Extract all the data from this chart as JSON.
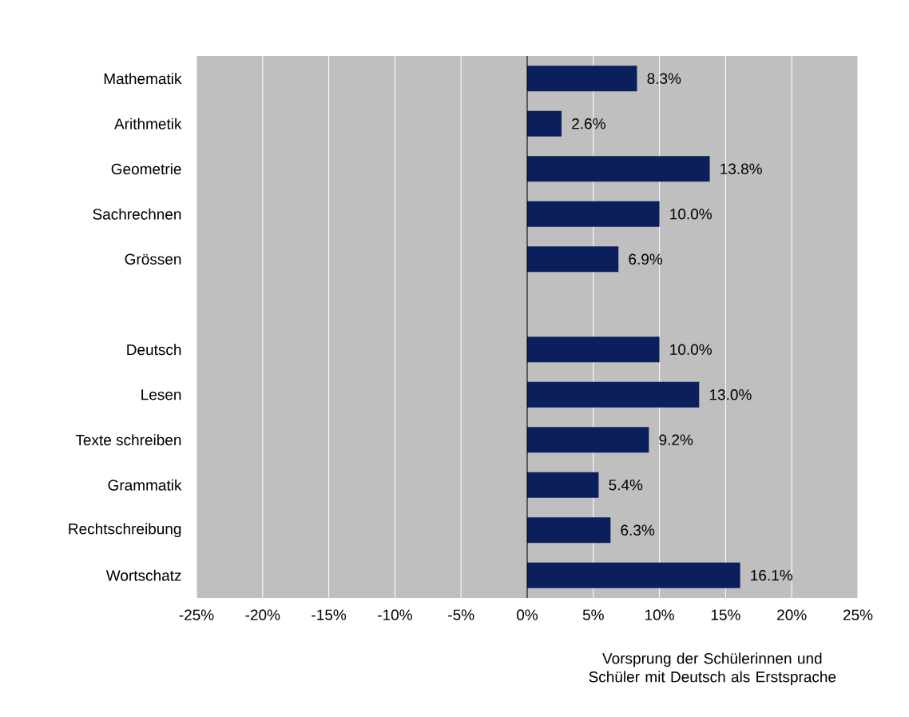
{
  "chart_data": {
    "type": "bar",
    "orientation": "horizontal",
    "categories": [
      "Mathematik",
      "Arithmetik",
      "Geometrie",
      "Sachrechnen",
      "Grössen",
      null,
      "Deutsch",
      "Lesen",
      "Texte schreiben",
      "Grammatik",
      "Rechtschreibung",
      "Wortschatz"
    ],
    "values": [
      8.3,
      2.6,
      13.8,
      10.0,
      6.9,
      null,
      10.0,
      13.0,
      9.2,
      5.4,
      6.3,
      16.1
    ],
    "value_labels": [
      "8.3%",
      "2.6%",
      "13.8%",
      "10.0%",
      "6.9%",
      null,
      "10.0%",
      "13.0%",
      "9.2%",
      "5.4%",
      "6.3%",
      "16.1%"
    ],
    "color": "#0b1f5c",
    "xlabel": "Vorsprung der Schülerinnen und Schüler mit Deutsch als Erstsprache",
    "xlim": [
      -25,
      25
    ],
    "xticks": [
      {
        "value": -25,
        "label": "-25%"
      },
      {
        "value": -20,
        "label": "-20%"
      },
      {
        "value": -15,
        "label": "-15%"
      },
      {
        "value": -10,
        "label": "-10%"
      },
      {
        "value": -5,
        "label": "-5%"
      },
      {
        "value": 0,
        "label": "0%"
      },
      {
        "value": 5,
        "label": "5%"
      },
      {
        "value": 10,
        "label": "10%"
      },
      {
        "value": 15,
        "label": "15%"
      },
      {
        "value": 20,
        "label": "20%"
      },
      {
        "value": 25,
        "label": "25%"
      }
    ],
    "ref_lines": [
      {
        "axis": "x",
        "value": 0,
        "color": "#000000"
      }
    ],
    "grid": "x"
  }
}
